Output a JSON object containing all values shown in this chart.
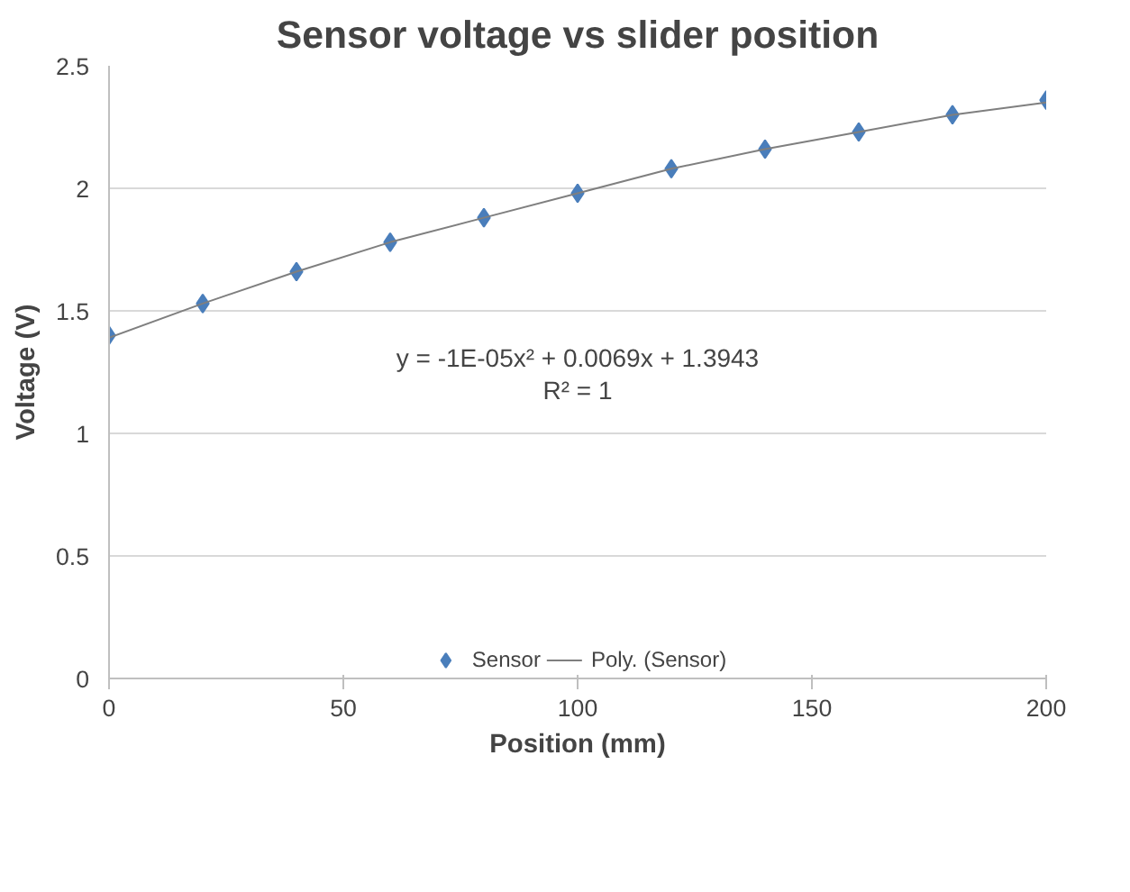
{
  "chart_data": {
    "type": "scatter",
    "title": "Sensor voltage vs slider position",
    "xlabel": "Position (mm)",
    "ylabel": "Voltage (V)",
    "x": [
      0,
      20,
      40,
      60,
      80,
      100,
      120,
      140,
      160,
      180,
      200
    ],
    "series": [
      {
        "name": "Sensor",
        "color": "#4a7ebb",
        "marker": "diamond",
        "values": [
          1.4,
          1.53,
          1.66,
          1.78,
          1.88,
          1.98,
          2.08,
          2.16,
          2.23,
          2.3,
          2.36
        ]
      },
      {
        "name": "Poly. (Sensor)",
        "type": "line",
        "color": "#7f7f7f",
        "marker": "none",
        "line_style": "solid",
        "values": [
          1.39,
          1.53,
          1.66,
          1.78,
          1.88,
          1.98,
          2.08,
          2.16,
          2.23,
          2.3,
          2.35
        ]
      }
    ],
    "annotations": [
      "y = -1E-05x² + 0.0069x + 1.3943",
      "R² = 1"
    ],
    "xlim": [
      0,
      200
    ],
    "ylim": [
      0,
      2.5
    ],
    "xticks": [
      0,
      50,
      100,
      150,
      200
    ],
    "yticks": [
      0,
      0.5,
      1,
      1.5,
      2,
      2.5
    ],
    "grid": "y",
    "legend": "bottom"
  }
}
